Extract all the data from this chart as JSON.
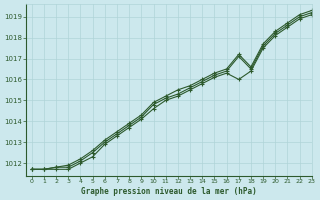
{
  "title": "Graphe pression niveau de la mer (hPa)",
  "background_color": "#cce8ed",
  "grid_color": "#b0d4d8",
  "line_color": "#2d5a2d",
  "xlim": [
    -0.5,
    23
  ],
  "ylim": [
    1011.4,
    1019.6
  ],
  "yticks": [
    1012,
    1013,
    1014,
    1015,
    1016,
    1017,
    1018,
    1019
  ],
  "xticks": [
    0,
    1,
    2,
    3,
    4,
    5,
    6,
    7,
    8,
    9,
    10,
    11,
    12,
    13,
    14,
    15,
    16,
    17,
    18,
    19,
    20,
    21,
    22,
    23
  ],
  "series": [
    [
      1011.7,
      1011.7,
      1011.8,
      1011.8,
      1012.1,
      1012.5,
      1013.0,
      1013.4,
      1013.8,
      1014.2,
      1014.8,
      1015.1,
      1015.3,
      1015.6,
      1015.9,
      1016.2,
      1016.4,
      1017.1,
      1016.5,
      1017.6,
      1018.2,
      1018.6,
      1019.0,
      1019.2
    ],
    [
      1011.7,
      1011.7,
      1011.8,
      1011.9,
      1012.2,
      1012.6,
      1013.1,
      1013.5,
      1013.9,
      1014.3,
      1014.9,
      1015.2,
      1015.5,
      1015.7,
      1016.0,
      1016.3,
      1016.5,
      1017.2,
      1016.6,
      1017.7,
      1018.3,
      1018.7,
      1019.1,
      1019.3
    ],
    [
      1011.7,
      1011.7,
      1011.7,
      1011.7,
      1012.0,
      1012.3,
      1012.9,
      1013.3,
      1013.7,
      1014.1,
      1014.6,
      1015.0,
      1015.2,
      1015.5,
      1015.8,
      1016.1,
      1016.3,
      1016.0,
      1016.4,
      1017.5,
      1018.1,
      1018.5,
      1018.9,
      1019.1
    ]
  ]
}
